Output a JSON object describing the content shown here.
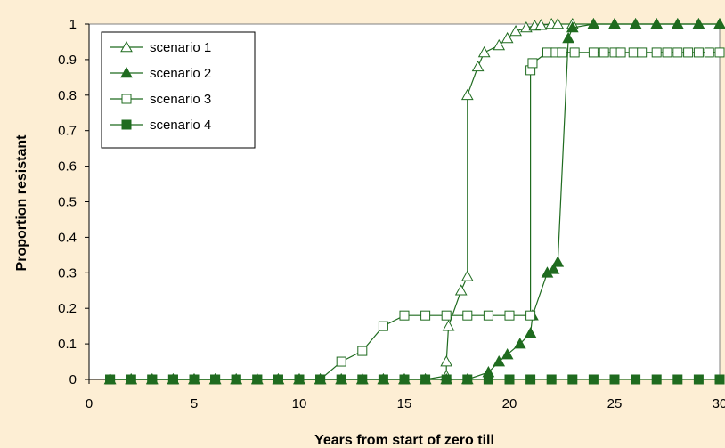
{
  "colors": {
    "page_background": "#fdeed4",
    "plot_background": "#ffffff",
    "series": "#1f6b1f",
    "axis": "#000000",
    "frame": "#808080"
  },
  "chart_data": {
    "type": "line",
    "title": "",
    "xlabel": "Years from start of zero till",
    "ylabel": "Proportion resistant",
    "xlim": [
      0,
      30
    ],
    "ylim": [
      0,
      1
    ],
    "xticks": [
      0,
      5,
      10,
      15,
      20,
      25,
      30
    ],
    "yticks": [
      0,
      0.1,
      0.2,
      0.3,
      0.4,
      0.5,
      0.6,
      0.7,
      0.8,
      0.9,
      1
    ],
    "grid": false,
    "legend_position": "top-left",
    "series": [
      {
        "name": "scenario 1",
        "marker": "open-triangle",
        "x": [
          1,
          2,
          3,
          4,
          5,
          6,
          7,
          8,
          9,
          10,
          11,
          12,
          13,
          14,
          15,
          16,
          17,
          17,
          17.1,
          17.7,
          18,
          18,
          18.5,
          18.8,
          19.5,
          19.9,
          20.3,
          20.8,
          21.2,
          21.5,
          22,
          22.3,
          23,
          24,
          25,
          26,
          27,
          28,
          29,
          30
        ],
        "y": [
          0,
          0,
          0,
          0,
          0,
          0,
          0,
          0,
          0,
          0,
          0,
          0,
          0,
          0,
          0,
          0,
          0.01,
          0.05,
          0.15,
          0.25,
          0.29,
          0.8,
          0.88,
          0.92,
          0.94,
          0.96,
          0.98,
          0.99,
          0.995,
          0.997,
          1,
          1,
          1,
          1,
          1,
          1,
          1,
          1,
          1,
          1
        ]
      },
      {
        "name": "scenario 2",
        "marker": "filled-triangle",
        "x": [
          1,
          2,
          3,
          4,
          5,
          6,
          7,
          8,
          9,
          10,
          11,
          12,
          13,
          14,
          15,
          16,
          17,
          18,
          19,
          19.5,
          19.9,
          20.5,
          21,
          21.1,
          21.8,
          22.1,
          22.3,
          22.8,
          23,
          24,
          25,
          26,
          27,
          28,
          29,
          30
        ],
        "y": [
          0,
          0,
          0,
          0,
          0,
          0,
          0,
          0,
          0,
          0,
          0,
          0,
          0,
          0,
          0,
          0,
          0,
          0,
          0.02,
          0.05,
          0.07,
          0.1,
          0.13,
          0.18,
          0.3,
          0.31,
          0.33,
          0.96,
          0.99,
          1,
          1,
          1,
          1,
          1,
          1,
          1
        ]
      },
      {
        "name": "scenario 3",
        "marker": "open-square",
        "x": [
          1,
          2,
          3,
          4,
          5,
          6,
          7,
          8,
          9,
          10,
          11,
          12,
          13,
          14,
          15,
          16,
          17,
          18,
          19,
          20,
          21,
          21,
          21.1,
          21.8,
          22.2,
          22.5,
          23.1,
          24,
          24.5,
          25,
          25.3,
          25.9,
          26.3,
          27,
          27.5,
          28,
          28.5,
          29,
          29.5,
          30
        ],
        "y": [
          0,
          0,
          0,
          0,
          0,
          0,
          0,
          0,
          0,
          0,
          0,
          0.05,
          0.08,
          0.15,
          0.18,
          0.18,
          0.18,
          0.18,
          0.18,
          0.18,
          0.18,
          0.87,
          0.89,
          0.92,
          0.92,
          0.92,
          0.92,
          0.92,
          0.92,
          0.92,
          0.92,
          0.92,
          0.92,
          0.92,
          0.92,
          0.92,
          0.92,
          0.92,
          0.92,
          0.92
        ]
      },
      {
        "name": "scenario 4",
        "marker": "filled-square",
        "x": [
          1,
          2,
          3,
          4,
          5,
          6,
          7,
          8,
          9,
          10,
          11,
          12,
          13,
          14,
          15,
          16,
          17,
          18,
          19,
          20,
          21,
          22,
          23,
          24,
          25,
          26,
          27,
          28,
          29,
          30
        ],
        "y": [
          0,
          0,
          0,
          0,
          0,
          0,
          0,
          0,
          0,
          0,
          0,
          0,
          0,
          0,
          0,
          0,
          0,
          0,
          0,
          0,
          0,
          0,
          0,
          0,
          0,
          0,
          0,
          0,
          0,
          0
        ]
      }
    ]
  }
}
